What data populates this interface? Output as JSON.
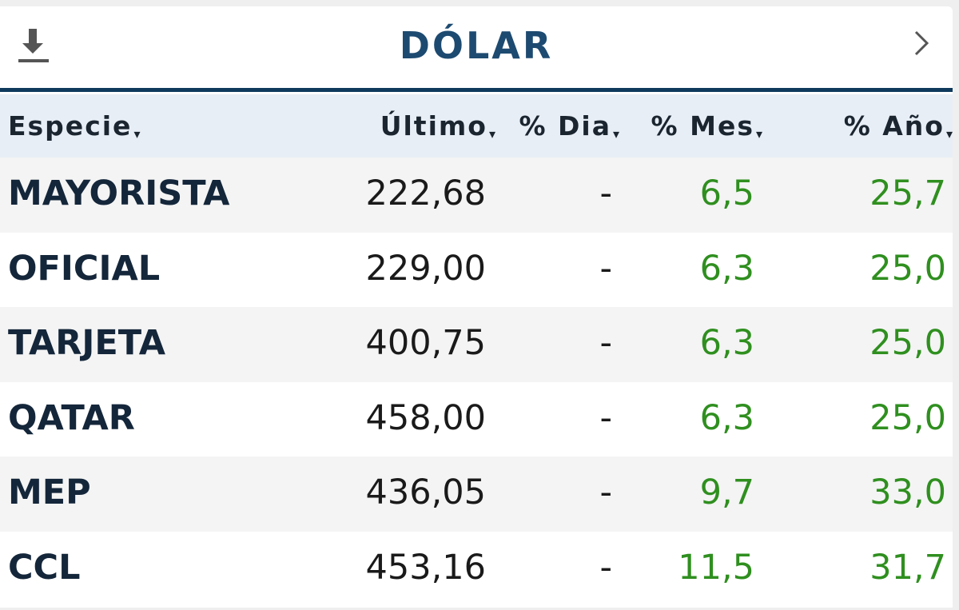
{
  "header": {
    "title": "DÓLAR"
  },
  "table": {
    "columns": [
      "Especie",
      "Último",
      "% Dia",
      "% Mes",
      "% Año"
    ],
    "rows": [
      [
        "MAYORISTA",
        "222,68",
        "-",
        "6,5",
        "25,7"
      ],
      [
        "OFICIAL",
        "229,00",
        "-",
        "6,3",
        "25,0"
      ],
      [
        "TARJETA",
        "400,75",
        "-",
        "6,3",
        "25,0"
      ],
      [
        "QATAR",
        "458,00",
        "-",
        "6,3",
        "25,0"
      ],
      [
        "MEP",
        "436,05",
        "-",
        "9,7",
        "33,0"
      ],
      [
        "CCL",
        "453,16",
        "-",
        "11,5",
        "31,7"
      ]
    ]
  }
}
